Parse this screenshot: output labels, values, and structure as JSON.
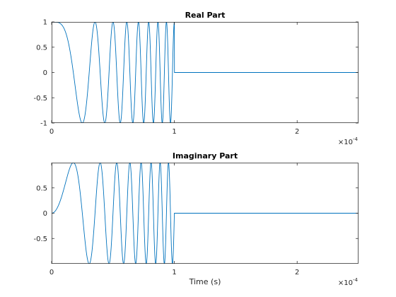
{
  "chart_data": [
    {
      "type": "line",
      "title": "Real Part",
      "xlabel": "",
      "ylabel": "",
      "xlim": [
        0,
        0.00025
      ],
      "ylim": [
        -1,
        1
      ],
      "x_ticks": [
        0,
        0.0001,
        0.0002
      ],
      "x_tick_labels": [
        "0",
        "1",
        "2"
      ],
      "y_ticks": [
        -1,
        -0.5,
        0,
        0.5,
        1
      ],
      "y_tick_labels": [
        "-1",
        "-0.5",
        "0",
        "0.5",
        "1"
      ],
      "x_exponent_base": "×10",
      "x_exponent": "-4",
      "grid": false,
      "legend": "none",
      "series": [
        {
          "component": "real",
          "signal": "linear chirp, unit amplitude, phase = 0.5·k·t², active for t ≤ 1.0e-4 s, zero afterwards",
          "t_start": 0,
          "t_end_active": 0.0001,
          "t_end": 0.00025,
          "chirp_rate_hz_per_s": 1600000000.0,
          "color": "#0072BD"
        }
      ]
    },
    {
      "type": "line",
      "title": "Imaginary Part",
      "xlabel": "Time (s)",
      "ylabel": "",
      "xlim": [
        0,
        0.00025
      ],
      "ylim": [
        -1,
        1
      ],
      "x_ticks": [
        0,
        0.0001,
        0.0002
      ],
      "x_tick_labels": [
        "0",
        "1",
        "2"
      ],
      "y_ticks": [
        -0.5,
        0,
        0.5
      ],
      "y_tick_labels": [
        "-0.5",
        "0",
        "0.5"
      ],
      "x_exponent_base": "×10",
      "x_exponent": "-4",
      "grid": false,
      "legend": "none",
      "series": [
        {
          "component": "imaginary",
          "signal": "linear chirp, unit amplitude, phase = 0.5·k·t², active for t ≤ 1.0e-4 s, zero afterwards",
          "t_start": 0,
          "t_end_active": 0.0001,
          "t_end": 0.00025,
          "chirp_rate_hz_per_s": 1600000000.0,
          "color": "#0072BD"
        }
      ]
    }
  ]
}
